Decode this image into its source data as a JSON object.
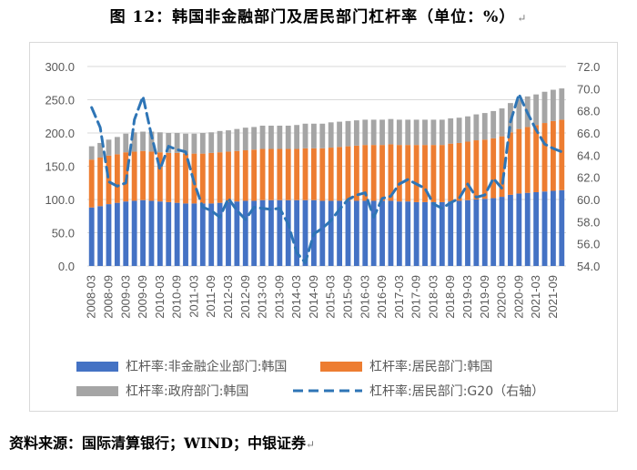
{
  "figure": {
    "title": "图 12：韩国非金融部门及居民部门杠杆率（单位：%）",
    "source": "资料来源：国际清算银行；WIND；中银证券"
  },
  "chart_data": {
    "type": "bar",
    "stacked": true,
    "title": "",
    "xlabel": "",
    "ylabel": "",
    "ylim": [
      0,
      300
    ],
    "y_ticks": [
      "0.0",
      "50.0",
      "100.0",
      "150.0",
      "200.0",
      "250.0",
      "300.0"
    ],
    "y2lim": [
      54,
      72
    ],
    "y2_ticks": [
      "54.0",
      "56.0",
      "58.0",
      "60.0",
      "62.0",
      "64.0",
      "66.0",
      "68.0",
      "70.0",
      "72.0"
    ],
    "grid": "horizontal",
    "legend_position": "bottom",
    "x_tick_labels": [
      "2008-03",
      "2008-09",
      "2009-03",
      "2009-09",
      "2010-03",
      "2010-09",
      "2011-03",
      "2011-09",
      "2012-03",
      "2012-09",
      "2013-03",
      "2013-09",
      "2014-03",
      "2014-09",
      "2015-03",
      "2015-09",
      "2016-03",
      "2016-09",
      "2017-03",
      "2017-09",
      "2018-03",
      "2018-09",
      "2019-03",
      "2019-09",
      "2020-03",
      "2020-09",
      "2021-03",
      "2021-09"
    ],
    "categories": [
      "2008-03",
      "2008-06",
      "2008-09",
      "2008-12",
      "2009-03",
      "2009-06",
      "2009-09",
      "2009-12",
      "2010-03",
      "2010-06",
      "2010-09",
      "2010-12",
      "2011-03",
      "2011-06",
      "2011-09",
      "2011-12",
      "2012-03",
      "2012-06",
      "2012-09",
      "2012-12",
      "2013-03",
      "2013-06",
      "2013-09",
      "2013-12",
      "2014-03",
      "2014-06",
      "2014-09",
      "2014-12",
      "2015-03",
      "2015-06",
      "2015-09",
      "2015-12",
      "2016-03",
      "2016-06",
      "2016-09",
      "2016-12",
      "2017-03",
      "2017-06",
      "2017-09",
      "2017-12",
      "2018-03",
      "2018-06",
      "2018-09",
      "2018-12",
      "2019-03",
      "2019-06",
      "2019-09",
      "2019-12",
      "2020-03",
      "2020-06",
      "2020-09",
      "2020-12",
      "2021-03",
      "2021-06",
      "2021-09",
      "2021-12"
    ],
    "series": [
      {
        "name": "杠杆率:非金融企业部门:韩国",
        "color": "#4472c4",
        "axis": "left",
        "values": [
          88,
          90,
          93,
          95,
          97,
          98,
          99,
          98,
          97,
          96,
          95,
          94,
          94,
          94,
          94,
          95,
          96,
          97,
          98,
          98,
          99,
          99,
          99,
          99,
          99,
          99,
          99,
          98,
          98,
          98,
          98,
          98,
          98,
          98,
          98,
          98,
          97,
          97,
          96,
          96,
          96,
          96,
          97,
          98,
          99,
          100,
          101,
          102,
          104,
          107,
          109,
          110,
          111,
          112,
          113,
          114
        ]
      },
      {
        "name": "杠杆率:居民部门:韩国",
        "color": "#ed7d31",
        "axis": "left",
        "values": [
          72,
          73,
          73,
          73,
          74,
          74,
          74,
          74,
          74,
          74,
          75,
          75,
          75,
          75,
          76,
          76,
          76,
          76,
          76,
          77,
          77,
          77,
          77,
          77,
          77,
          78,
          78,
          79,
          80,
          81,
          82,
          83,
          84,
          84,
          84,
          85,
          85,
          85,
          86,
          86,
          86,
          86,
          87,
          87,
          88,
          89,
          89,
          90,
          91,
          94,
          97,
          99,
          101,
          103,
          105,
          106
        ]
      },
      {
        "name": "杠杆率:政府部门:韩国",
        "color": "#a5a5a5",
        "axis": "left",
        "values": [
          20,
          22,
          24,
          26,
          28,
          29,
          29,
          30,
          30,
          30,
          30,
          30,
          30,
          31,
          31,
          32,
          32,
          33,
          34,
          34,
          35,
          35,
          35,
          35,
          36,
          37,
          37,
          37,
          38,
          38,
          38,
          38,
          38,
          38,
          38,
          38,
          38,
          38,
          38,
          38,
          38,
          38,
          38,
          38,
          38,
          39,
          40,
          41,
          42,
          44,
          45,
          46,
          46,
          47,
          47,
          47
        ]
      },
      {
        "name": "杠杆率:居民部门:G20（右轴）",
        "color": "#2e75b6",
        "axis": "right",
        "type": "line",
        "dashed": true,
        "values": [
          68.3,
          66.5,
          61.6,
          61.2,
          61.5,
          67.2,
          69.3,
          65.8,
          62.7,
          64.8,
          64.5,
          64.3,
          61.5,
          59.3,
          59.0,
          58.4,
          60.1,
          59.0,
          58.2,
          59.3,
          59.2,
          59.1,
          59.2,
          57.8,
          55.2,
          54.3,
          56.9,
          57.4,
          58.1,
          59.1,
          60.0,
          60.4,
          60.6,
          58.4,
          60.1,
          60.3,
          61.4,
          61.8,
          61.4,
          61.0,
          59.6,
          59.2,
          59.7,
          60.1,
          61.4,
          60.2,
          60.4,
          61.9,
          61.0,
          67.0,
          69.5,
          67.8,
          66.3,
          65.0,
          64.6,
          64.3
        ]
      }
    ]
  }
}
